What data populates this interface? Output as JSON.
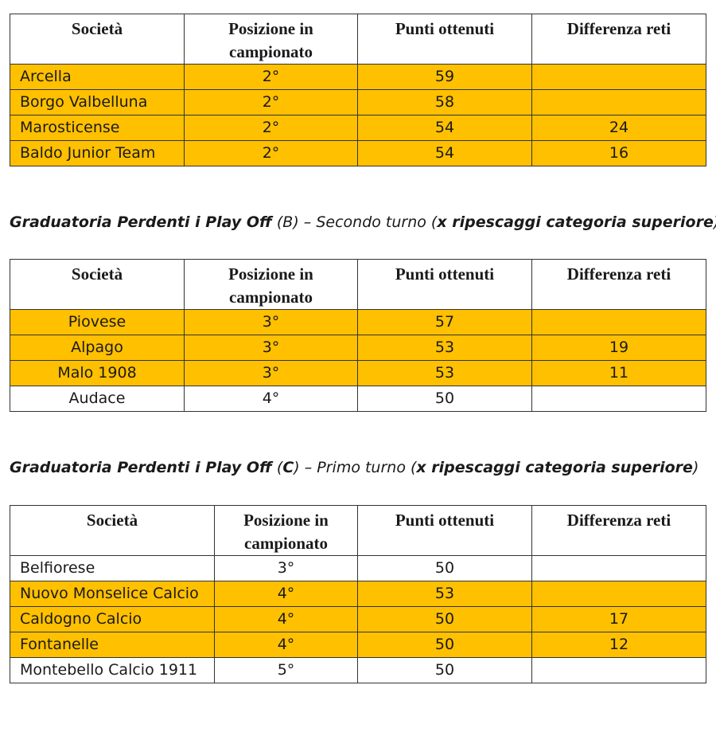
{
  "tables": [
    {
      "headers": [
        "Società",
        "Posizione in campionato",
        "Punti ottenuti",
        "Differenza reti"
      ],
      "rows": [
        {
          "team": "Arcella",
          "pos": "2°",
          "pts": "59",
          "diff": "",
          "highlight": true
        },
        {
          "team": "Borgo Valbelluna",
          "pos": "2°",
          "pts": "58",
          "diff": "",
          "highlight": true
        },
        {
          "team": "Marosticense",
          "pos": "2°",
          "pts": "54",
          "diff": "24",
          "highlight": true
        },
        {
          "team": "Baldo Junior Team",
          "pos": "2°",
          "pts": "54",
          "diff": "16",
          "highlight": true
        }
      ]
    },
    {
      "title_bold_1": "Graduatoria Perdenti i Play Off",
      "title_normal_1": " (B) – Secondo turno (",
      "title_bold_2": "x ripescaggi categoria superiore",
      "title_normal_2": ")",
      "headers": [
        "Società",
        "Posizione in campionato",
        "Punti ottenuti",
        "Differenza reti"
      ],
      "rows": [
        {
          "team": "Piovese",
          "pos": "3°",
          "pts": "57",
          "diff": "",
          "highlight": true
        },
        {
          "team": "Alpago",
          "pos": "3°",
          "pts": "53",
          "diff": "19",
          "highlight": true
        },
        {
          "team": "Malo 1908",
          "pos": "3°",
          "pts": "53",
          "diff": "11",
          "highlight": true
        },
        {
          "team": "Audace",
          "pos": "4°",
          "pts": "50",
          "diff": "",
          "highlight": false
        }
      ]
    },
    {
      "title_bold_1": "Graduatoria Perdenti i Play Off",
      "title_normal_1": " (",
      "title_bold_mid": "C",
      "title_normal_mid": ") – ",
      "title_normal_italic": "Primo turno (",
      "title_bold_2": "x ripescaggi categoria superiore",
      "title_normal_2": ")",
      "headers": [
        "Società",
        "Posizione in campionato",
        "Punti ottenuti",
        "Differenza reti"
      ],
      "rows": [
        {
          "team": "Belfiorese",
          "pos": "3°",
          "pts": "50",
          "diff": "",
          "highlight": false
        },
        {
          "team": "Nuovo Monselice Calcio",
          "pos": "4°",
          "pts": "53",
          "diff": "",
          "highlight": true
        },
        {
          "team": "Caldogno Calcio",
          "pos": "4°",
          "pts": "50",
          "diff": "17",
          "highlight": true
        },
        {
          "team": "Fontanelle",
          "pos": "4°",
          "pts": "50",
          "diff": "12",
          "highlight": true
        },
        {
          "team": "Montebello Calcio 1911",
          "pos": "5°",
          "pts": "50",
          "diff": "",
          "highlight": false
        }
      ]
    }
  ],
  "colors": {
    "highlight": "#ffc000",
    "border": "#333333"
  }
}
